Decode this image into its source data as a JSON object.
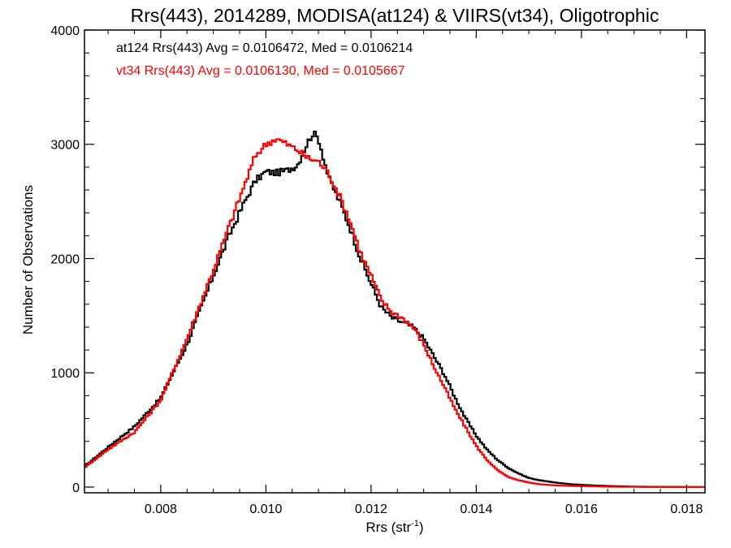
{
  "chart_data": {
    "type": "line",
    "title": "Rrs(443), 2014289, MODISA(at124) & VIIRS(vt34), Oligotrophic",
    "xlabel_main": "Rrs (str",
    "xlabel_sup": "-1",
    "xlabel_close": ")",
    "ylabel": "Number of Observations",
    "xlim": [
      0.00655,
      0.01835
    ],
    "ylim": [
      -50,
      4000
    ],
    "x_ticks": [
      0.008,
      0.01,
      0.012,
      0.014,
      0.016,
      0.018
    ],
    "x_tick_labels": [
      "0.008",
      "0.010",
      "0.012",
      "0.014",
      "0.016",
      "0.018"
    ],
    "y_ticks": [
      0,
      1000,
      2000,
      3000,
      4000
    ],
    "y_tick_labels": [
      "0",
      "1000",
      "2000",
      "3000",
      "4000"
    ],
    "grid": false,
    "annotations": [
      {
        "text": "at124 Rrs(443) Avg = 0.0106472, Med = 0.0106214",
        "color": "#000000"
      },
      {
        "text": "vt34 Rrs(443) Avg = 0.0106130, Med = 0.0105667",
        "color": "#ff0000"
      }
    ],
    "series": [
      {
        "color": "#000000",
        "step": true,
        "x": [
          0.00655,
          0.007,
          0.0075,
          0.008,
          0.0085,
          0.009,
          0.0093,
          0.0096,
          0.0098,
          0.01,
          0.0102,
          0.0104,
          0.0106,
          0.0108,
          0.0109,
          0.011,
          0.0112,
          0.0114,
          0.0116,
          0.0118,
          0.012,
          0.0122,
          0.0124,
          0.0126,
          0.0128,
          0.013,
          0.0132,
          0.0134,
          0.0136,
          0.0138,
          0.014,
          0.0142,
          0.0144,
          0.0146,
          0.0148,
          0.015,
          0.0152,
          0.0155,
          0.0158,
          0.0162,
          0.0166,
          0.017,
          0.0175,
          0.018,
          0.01835
        ],
        "y": [
          180,
          350,
          530,
          780,
          1250,
          1850,
          2200,
          2500,
          2680,
          2760,
          2750,
          2770,
          2820,
          3020,
          3100,
          3050,
          2700,
          2500,
          2270,
          2000,
          1780,
          1570,
          1480,
          1440,
          1400,
          1300,
          1140,
          980,
          780,
          600,
          450,
          330,
          240,
          170,
          120,
          80,
          60,
          40,
          25,
          15,
          8,
          4,
          2,
          1,
          0
        ]
      },
      {
        "color": "#ff0000",
        "step": true,
        "x": [
          0.00655,
          0.007,
          0.0075,
          0.008,
          0.0085,
          0.009,
          0.0093,
          0.0096,
          0.0098,
          0.01,
          0.0102,
          0.0104,
          0.0106,
          0.0108,
          0.011,
          0.0112,
          0.0114,
          0.0116,
          0.0118,
          0.012,
          0.0122,
          0.0124,
          0.0126,
          0.0128,
          0.013,
          0.0132,
          0.0134,
          0.0136,
          0.0138,
          0.014,
          0.0142,
          0.0144,
          0.0146,
          0.0148,
          0.015,
          0.0152,
          0.0155,
          0.0158,
          0.0162,
          0.0166,
          0.017,
          0.0175,
          0.018,
          0.01835
        ],
        "y": [
          170,
          330,
          480,
          760,
          1300,
          1900,
          2280,
          2650,
          2900,
          3000,
          3050,
          3000,
          2950,
          2880,
          2850,
          2740,
          2550,
          2330,
          2050,
          1850,
          1630,
          1530,
          1480,
          1400,
          1250,
          1050,
          870,
          680,
          520,
          360,
          240,
          150,
          90,
          60,
          40,
          25,
          15,
          10,
          6,
          3,
          2,
          1,
          0,
          0
        ]
      }
    ]
  }
}
